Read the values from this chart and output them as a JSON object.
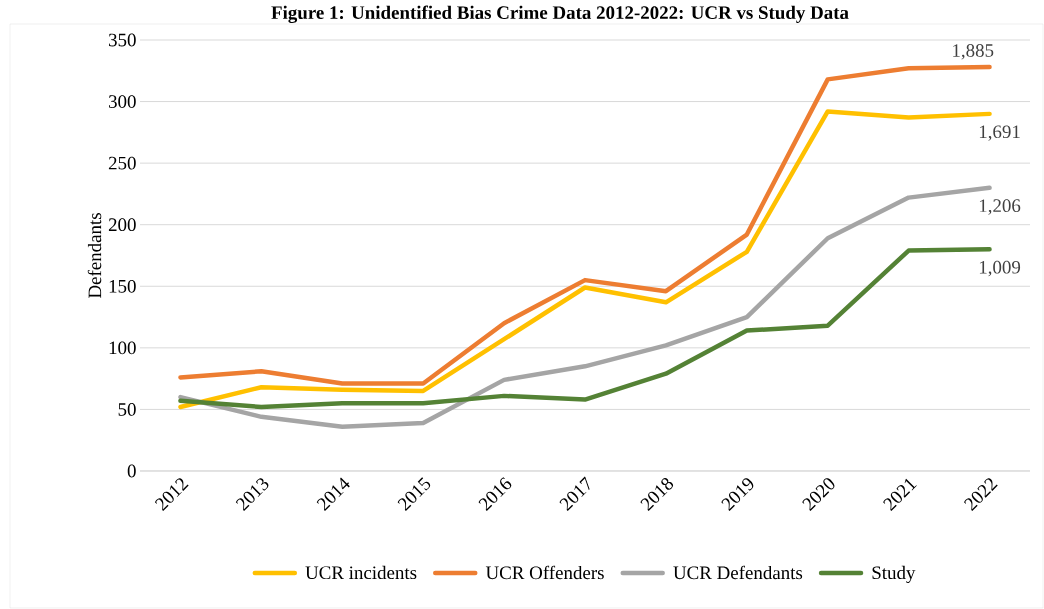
{
  "chart_data": {
    "type": "line",
    "title": "Figure 1: Unidentified Bias Crime Data 2012-2022: UCR vs Study Data",
    "ylabel": "Defendants",
    "categories": [
      "2012",
      "2013",
      "2014",
      "2015",
      "2016",
      "2017",
      "2018",
      "2019",
      "2020",
      "2021",
      "2022"
    ],
    "series": [
      {
        "name": "UCR incidents",
        "color": "#ffc000",
        "values": [
          52,
          68,
          66,
          65,
          107,
          149,
          137,
          178,
          292,
          287,
          290
        ]
      },
      {
        "name": "UCR Offenders",
        "color": "#ed7d31",
        "values": [
          76,
          81,
          71,
          71,
          120,
          155,
          146,
          192,
          318,
          327,
          328
        ]
      },
      {
        "name": "UCR Defendants",
        "color": "#a5a5a5",
        "values": [
          60,
          44,
          36,
          39,
          74,
          85,
          102,
          125,
          189,
          222,
          230
        ]
      },
      {
        "name": "Study",
        "color": "#548235",
        "values": [
          57,
          52,
          55,
          55,
          61,
          58,
          79,
          114,
          118,
          179,
          180
        ]
      }
    ],
    "ylim": [
      0,
      350
    ],
    "yticks": [
      0,
      50,
      100,
      150,
      200,
      250,
      300,
      350
    ],
    "grid": "y",
    "legend": "bottom",
    "marker": "none",
    "line_style": "solid",
    "annotations": [
      {
        "text": "1,885",
        "x": "2022",
        "y": 328
      },
      {
        "text": "1,691",
        "x": "2022",
        "y": 290
      },
      {
        "text": "1,206",
        "x": "2022",
        "y": 230
      },
      {
        "text": "1,009",
        "x": "2022",
        "y": 180
      }
    ]
  }
}
